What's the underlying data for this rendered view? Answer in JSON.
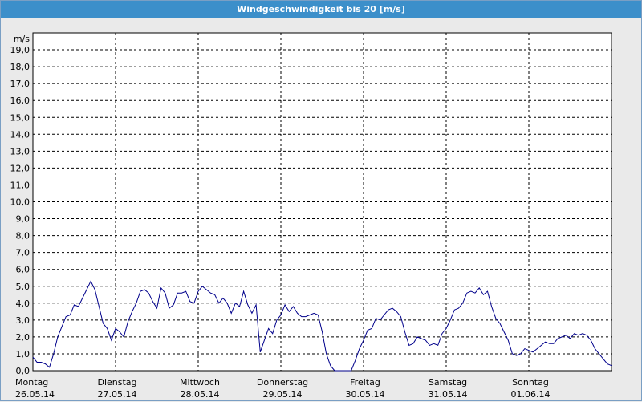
{
  "window": {
    "title": "Windgeschwindigkeit bis 20 [m/s]"
  },
  "chart_data": {
    "type": "line",
    "title": "Windgeschwindigkeit bis 20 [m/s]",
    "ylabel": "m/s",
    "ylim": [
      0,
      20
    ],
    "xlim": [
      0,
      7
    ],
    "y_ticks": [
      "0,0",
      "1,0",
      "2,0",
      "3,0",
      "4,0",
      "5,0",
      "6,0",
      "7,0",
      "8,0",
      "9,0",
      "10,0",
      "11,0",
      "12,0",
      "13,0",
      "14,0",
      "15,0",
      "16,0",
      "17,0",
      "18,0",
      "19,0"
    ],
    "x_ticks": [
      {
        "day": "Montag",
        "date": "26.05.14"
      },
      {
        "day": "Dienstag",
        "date": "27.05.14"
      },
      {
        "day": "Mittwoch",
        "date": "28.05.14"
      },
      {
        "day": "Donnerstag",
        "date": "29.05.14"
      },
      {
        "day": "Freitag",
        "date": "30.05.14"
      },
      {
        "day": "Samstag",
        "date": "31.05.14"
      },
      {
        "day": "Sonntag",
        "date": "01.06.14"
      }
    ],
    "grid": true,
    "line_color": "#00008b",
    "series": [
      {
        "x": [
          0,
          0.05,
          0.1,
          0.15,
          0.2,
          0.25,
          0.3,
          0.35,
          0.4,
          0.45,
          0.5,
          0.55,
          0.6,
          0.65,
          0.7,
          0.75,
          0.8,
          0.85,
          0.9,
          0.95,
          1.0,
          1.05,
          1.1,
          1.15,
          1.2,
          1.25,
          1.3,
          1.35,
          1.4,
          1.45,
          1.5,
          1.55,
          1.6,
          1.65,
          1.7,
          1.75,
          1.8,
          1.85,
          1.9,
          1.95,
          2.0,
          2.05,
          2.1,
          2.15,
          2.2,
          2.25,
          2.3,
          2.35,
          2.4,
          2.45,
          2.5,
          2.55,
          2.6,
          2.65,
          2.7,
          2.75,
          2.8,
          2.85,
          2.9,
          2.95,
          3.0,
          3.05,
          3.1,
          3.15,
          3.2,
          3.25,
          3.3,
          3.35,
          3.4,
          3.45,
          3.5,
          3.55,
          3.6,
          3.65,
          3.7,
          3.75,
          3.8,
          3.85,
          3.9,
          3.95,
          4.0,
          4.05,
          4.1,
          4.15,
          4.2,
          4.25,
          4.3,
          4.35,
          4.4,
          4.45,
          4.5,
          4.55,
          4.6,
          4.65,
          4.7,
          4.75,
          4.8,
          4.85,
          4.9,
          4.95,
          5.0,
          5.05,
          5.1,
          5.15,
          5.2,
          5.25,
          5.3,
          5.35,
          5.4,
          5.45,
          5.5,
          5.55,
          5.6,
          5.65,
          5.7,
          5.75,
          5.8,
          5.85,
          5.9,
          5.95,
          6.0,
          6.05,
          6.1,
          6.15,
          6.2,
          6.25,
          6.3,
          6.35,
          6.4,
          6.45,
          6.5,
          6.55,
          6.6,
          6.65,
          6.7,
          6.75,
          6.8,
          6.85,
          6.9,
          6.95,
          7.0
        ],
        "y": [
          0.8,
          0.5,
          0.5,
          0.4,
          0.2,
          1.0,
          2.0,
          2.6,
          3.2,
          3.3,
          3.9,
          3.8,
          4.3,
          4.8,
          5.3,
          4.8,
          3.8,
          2.8,
          2.5,
          1.8,
          2.5,
          2.3,
          2.0,
          2.9,
          3.5,
          4.0,
          4.7,
          4.8,
          4.6,
          4.1,
          3.7,
          4.9,
          4.6,
          3.7,
          3.9,
          4.6,
          4.6,
          4.7,
          4.1,
          4.0,
          4.7,
          5.0,
          4.8,
          4.6,
          4.5,
          4.0,
          4.3,
          4.0,
          3.4,
          4.0,
          3.8,
          4.7,
          3.9,
          3.4,
          3.9,
          1.1,
          1.8,
          2.5,
          2.2,
          3.0,
          3.3,
          3.9,
          3.5,
          3.8,
          3.4,
          3.2,
          3.2,
          3.3,
          3.4,
          3.3,
          2.3,
          1.0,
          0.3,
          0.0,
          0.0,
          -0.2,
          0.0,
          0.0,
          0.6,
          1.3,
          1.8,
          2.4,
          2.5,
          3.1,
          3.0,
          3.3,
          3.6,
          3.7,
          3.5,
          3.2,
          2.3,
          1.5,
          1.6,
          2.0,
          1.9,
          1.8,
          1.5,
          1.6,
          1.5,
          2.2,
          2.5,
          3.0,
          3.6,
          3.7,
          4.0,
          4.6,
          4.7,
          4.6,
          4.9,
          4.5,
          4.7,
          3.8,
          3.1,
          2.8,
          2.3,
          1.8,
          1.0,
          0.9,
          1.0,
          1.3,
          1.2,
          1.1,
          1.3,
          1.5,
          1.7,
          1.6,
          1.6,
          1.9,
          2.0,
          2.1,
          1.9,
          2.2,
          2.1,
          2.2,
          2.1,
          1.8,
          1.3,
          1.0,
          0.7,
          0.4,
          0.3
        ]
      }
    ]
  }
}
